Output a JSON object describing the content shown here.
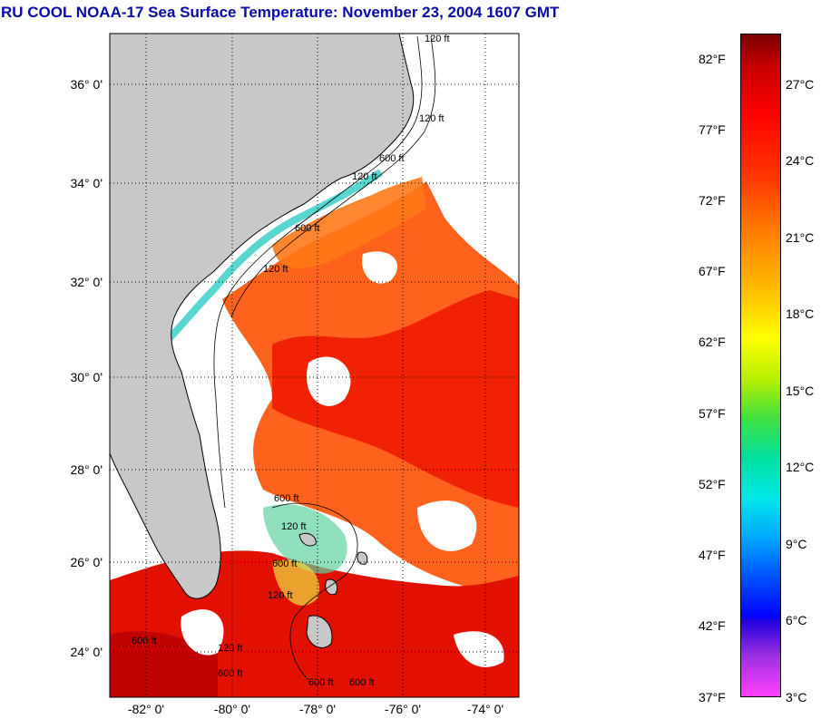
{
  "title": "RU COOL  NOAA-17  Sea Surface Temperature:  November 23, 2004 1607 GMT",
  "map": {
    "lat_ticks": [
      "36° 0'",
      "34° 0'",
      "32° 0'",
      "30° 0'",
      "28° 0'",
      "26° 0'",
      "24° 0'"
    ],
    "lon_ticks": [
      "-82° 0'",
      "-80° 0'",
      "-78° 0'",
      "-76° 0'",
      "-74° 0'"
    ],
    "depth_contour_labels": [
      "120 ft",
      "120 ft",
      "600 ft",
      "120 ft",
      "600 ft",
      "120 ft",
      "600 ft",
      "120 ft",
      "600 ft",
      "120 ft",
      "600 ft",
      "120 ft",
      "600 ft",
      "600 ft",
      "600 ft"
    ],
    "land_color": "#c8c8c8",
    "cloud_color": "#ffffff"
  },
  "colorbar": {
    "fahrenheit_labels": [
      "82°F",
      "77°F",
      "72°F",
      "67°F",
      "62°F",
      "57°F",
      "52°F",
      "47°F",
      "42°F",
      "37°F"
    ],
    "celsius_labels": [
      "27°C",
      "24°C",
      "21°C",
      "18°C",
      "15°C",
      "12°C",
      "9°C",
      "6°C",
      "3°C"
    ]
  }
}
